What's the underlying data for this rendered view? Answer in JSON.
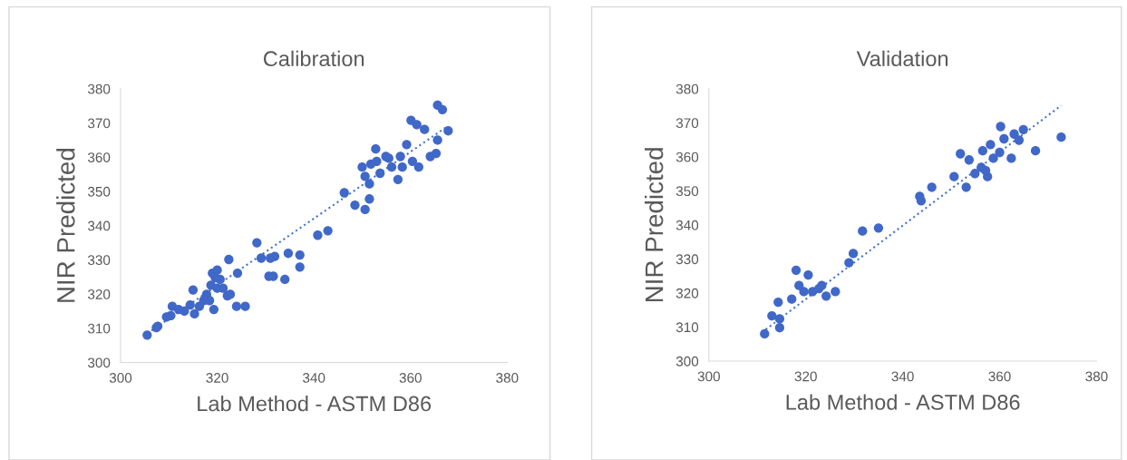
{
  "chart_data": [
    {
      "type": "scatter",
      "title": "Calibration",
      "xlabel": "Lab Method - ASTM D86",
      "ylabel": "NIR Predicted",
      "xlim": [
        300,
        380
      ],
      "xticks": [
        300,
        320,
        340,
        360,
        380
      ],
      "ylim": [
        300,
        380
      ],
      "yticks": [
        300,
        310,
        320,
        330,
        340,
        350,
        360,
        370,
        380
      ],
      "series": [
        {
          "marker": "circle",
          "color": "#4068c8",
          "x": [
            305.5,
            307.7,
            307.4,
            309.5,
            310.4,
            310.7,
            312,
            313.2,
            315,
            315.3,
            316.3,
            317.2,
            317.8,
            318.7,
            319,
            319.3,
            320,
            320.6,
            321.2,
            322.4,
            322.7,
            324.2,
            324,
            325.8,
            328.2,
            329.1,
            331,
            331.9,
            330.7,
            331.6,
            334,
            334.7,
            337.1,
            337.1,
            340.8,
            342.9,
            346.3,
            348.5,
            350.6,
            351.5,
            350,
            350.6,
            351.5,
            352.8,
            353,
            354.9,
            356.1,
            357.4,
            358.3,
            359.2,
            360.4,
            361.7,
            360.1,
            361.3,
            362.9,
            364.1,
            365.3,
            365.6,
            365.6,
            366.6,
            367.8,
            355.5,
            351.8,
            353.7,
            357.9,
            314.4,
            318.4,
            319.6,
            320,
            322.1
          ],
          "values": [
            308,
            310.6,
            310.2,
            313.3,
            313.7,
            316.4,
            315.5,
            315,
            321.2,
            314.2,
            316.4,
            318.1,
            319.9,
            322.6,
            326.1,
            315.5,
            327,
            324.3,
            321.7,
            330.1,
            319.9,
            326.1,
            316.4,
            316.4,
            335,
            330.5,
            330.5,
            331,
            325.2,
            325.2,
            324.3,
            331.9,
            331.4,
            327.9,
            337.2,
            338.5,
            349.6,
            346,
            344.7,
            347.8,
            357.1,
            354.4,
            352.2,
            362.4,
            358.8,
            360.2,
            357.1,
            353.5,
            357.1,
            363.7,
            358.8,
            357.1,
            370.8,
            369.5,
            368.1,
            360.2,
            361.1,
            365,
            375.2,
            373.9,
            367.7,
            359.7,
            358,
            355.3,
            360.2,
            316.8,
            318.1,
            324.8,
            321.7,
            319.5
          ]
        },
        {
          "type": "line",
          "line_style": "dotted",
          "marker": "none",
          "color": "#4472c4",
          "x": [
            306.4,
            367.2
          ],
          "values": [
            309.3,
            368.6
          ]
        }
      ]
    },
    {
      "type": "scatter",
      "title": "Validation",
      "xlabel": "Lab Method - ASTM D86",
      "ylabel": "NIR Predicted",
      "xlim": [
        300,
        380
      ],
      "xticks": [
        300,
        320,
        340,
        360,
        380
      ],
      "ylim": [
        300,
        380
      ],
      "yticks": [
        300,
        310,
        320,
        330,
        340,
        350,
        360,
        370,
        380
      ],
      "series": [
        {
          "marker": "circle",
          "color": "#4068c8",
          "x": [
            311.5,
            313,
            314.3,
            314.6,
            314.6,
            317.1,
            318,
            318.6,
            319.6,
            320.5,
            321.4,
            322.7,
            323.3,
            324.2,
            326.1,
            328.9,
            329.8,
            331.7,
            335,
            343.5,
            343.8,
            346,
            350.6,
            351.9,
            353.1,
            353.7,
            354.9,
            356.2,
            357.5,
            356.5,
            358.1,
            358.7,
            360,
            360.2,
            360.9,
            362.4,
            363,
            364,
            364.9,
            367.4,
            372.7,
            357.1
          ],
          "values": [
            308,
            313.3,
            317.3,
            312.4,
            309.8,
            318.2,
            326.7,
            322.2,
            320.4,
            325.3,
            320.4,
            321.3,
            322.2,
            319.1,
            320.4,
            328.9,
            331.6,
            338.2,
            339.1,
            348.4,
            347.1,
            351.1,
            354.2,
            360.9,
            351.1,
            359.1,
            355.1,
            356.9,
            354.2,
            361.8,
            363.6,
            359.6,
            361.3,
            368.9,
            365.3,
            359.6,
            366.7,
            364.9,
            368,
            361.8,
            365.8,
            356
          ]
        },
        {
          "type": "line",
          "line_style": "dotted",
          "marker": "none",
          "color": "#4472c4",
          "x": [
            310.9,
            372.7
          ],
          "values": [
            308.4,
            375.1
          ]
        }
      ]
    }
  ]
}
